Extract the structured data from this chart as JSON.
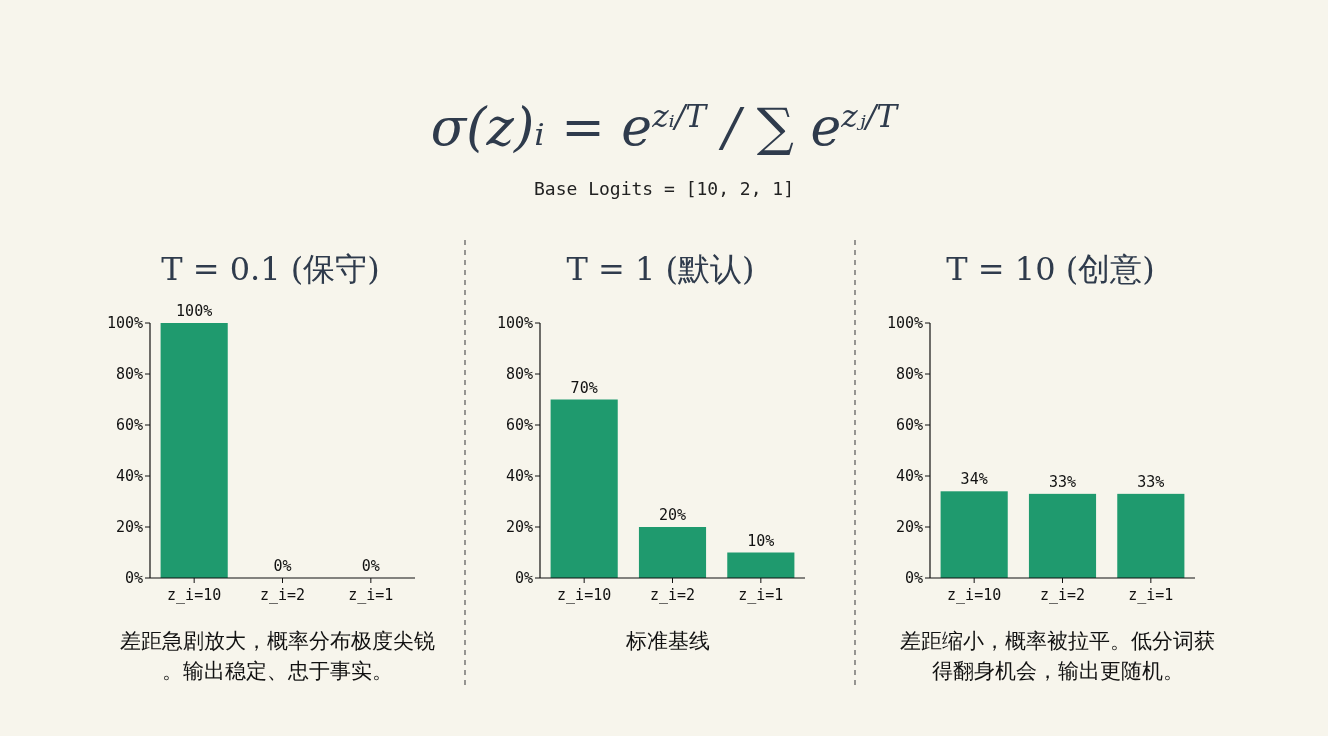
{
  "chart_data": [
    {
      "type": "other",
      "title": "σ(z)ᵢ = e$^{zᵢ/T}$ / ∑ e$^{zⱼ/T}$",
      "subtitle": "Base Logits = [10, 2, 1]"
    },
    {
      "type": "bar",
      "title": "T = 0.1 (保守)",
      "categories": [
        "z_i=10",
        "z_i=2",
        "z_i=1"
      ],
      "values": [
        100,
        0,
        0
      ],
      "value_labels": [
        "100%",
        "0%",
        "0%"
      ],
      "color": "#1f9a6e",
      "ylim": [
        0,
        100
      ],
      "yticks": [
        {
          "value": 0,
          "label": "0%"
        },
        {
          "value": 20,
          "label": "20%"
        },
        {
          "value": 40,
          "label": "40%"
        },
        {
          "value": 60,
          "label": "60%"
        },
        {
          "value": 80,
          "label": "80%"
        },
        {
          "value": 100,
          "label": "100%"
        }
      ],
      "annotations": [
        "差距急剧放大，概率分布极度尖锐。输出稳定、忠于事实。"
      ]
    },
    {
      "type": "bar",
      "title": "T = 1 (默认)",
      "categories": [
        "z_i=10",
        "z_i=2",
        "z_i=1"
      ],
      "values": [
        70,
        20,
        10
      ],
      "value_labels": [
        "70%",
        "20%",
        "10%"
      ],
      "color": "#1f9a6e",
      "ylim": [
        0,
        100
      ],
      "yticks": [
        {
          "value": 0,
          "label": "0%"
        },
        {
          "value": 20,
          "label": "20%"
        },
        {
          "value": 40,
          "label": "40%"
        },
        {
          "value": 60,
          "label": "60%"
        },
        {
          "value": 80,
          "label": "80%"
        },
        {
          "value": 100,
          "label": "100%"
        }
      ],
      "annotations": [
        "标准基线"
      ]
    },
    {
      "type": "bar",
      "title": "T = 10 (创意)",
      "categories": [
        "z_i=10",
        "z_i=2",
        "z_i=1"
      ],
      "values": [
        34,
        33,
        33
      ],
      "value_labels": [
        "34%",
        "33%",
        "33%"
      ],
      "color": "#1f9a6e",
      "ylim": [
        0,
        100
      ],
      "yticks": [
        {
          "value": 0,
          "label": "0%"
        },
        {
          "value": 20,
          "label": "20%"
        },
        {
          "value": 40,
          "label": "40%"
        },
        {
          "value": 60,
          "label": "60%"
        },
        {
          "value": 80,
          "label": "80%"
        },
        {
          "value": 100,
          "label": "100%"
        }
      ],
      "annotations": [
        "差距缩小，概率被拉平。低分词获得翻身机会，输出更随机。"
      ]
    }
  ]
}
